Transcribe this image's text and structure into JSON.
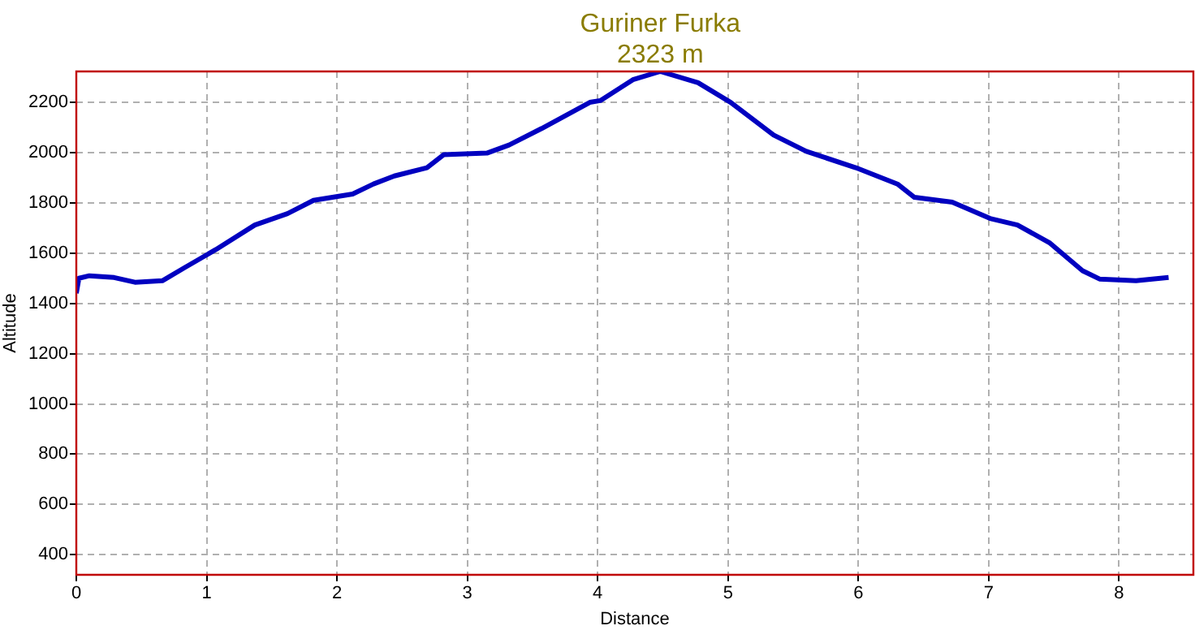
{
  "chart_data": {
    "type": "line",
    "xlabel": "Distance",
    "ylabel": "Altitude",
    "annotations": [
      {
        "text": "Guriner Furka\n2323 m",
        "x": 4.48,
        "y": 2323
      }
    ],
    "x": [
      0,
      0.02,
      0.1,
      0.29,
      0.45,
      0.66,
      0.83,
      1.07,
      1.37,
      1.62,
      1.82,
      2.12,
      2.28,
      2.44,
      2.69,
      2.82,
      3.15,
      3.32,
      3.57,
      3.94,
      4.02,
      4.27,
      4.48,
      4.77,
      5.02,
      5.35,
      5.6,
      5.98,
      6.3,
      6.43,
      6.72,
      7.01,
      7.22,
      7.47,
      7.72,
      7.85,
      8.13,
      8.38
    ],
    "series": [
      {
        "color": "#0000c0",
        "values": [
          1440,
          1500,
          1510,
          1503,
          1484,
          1490,
          1542,
          1614,
          1712,
          1757,
          1810,
          1835,
          1875,
          1907,
          1940,
          1992,
          1998,
          2030,
          2096,
          2200,
          2207,
          2290,
          2323,
          2278,
          2200,
          2070,
          2005,
          1940,
          1875,
          1822,
          1803,
          1738,
          1712,
          1640,
          1530,
          1497,
          1490,
          1503
        ]
      }
    ],
    "xlim": [
      0,
      8.57
    ],
    "xticks": [
      0,
      1,
      2,
      3,
      4,
      5,
      6,
      7,
      8
    ],
    "ylim": [
      320,
      2323
    ],
    "yticks": [
      400,
      600,
      800,
      1000,
      1200,
      1400,
      1600,
      1800,
      2000,
      2200
    ],
    "grid": true,
    "legend": false,
    "marker": "none",
    "line_style": "solid"
  }
}
